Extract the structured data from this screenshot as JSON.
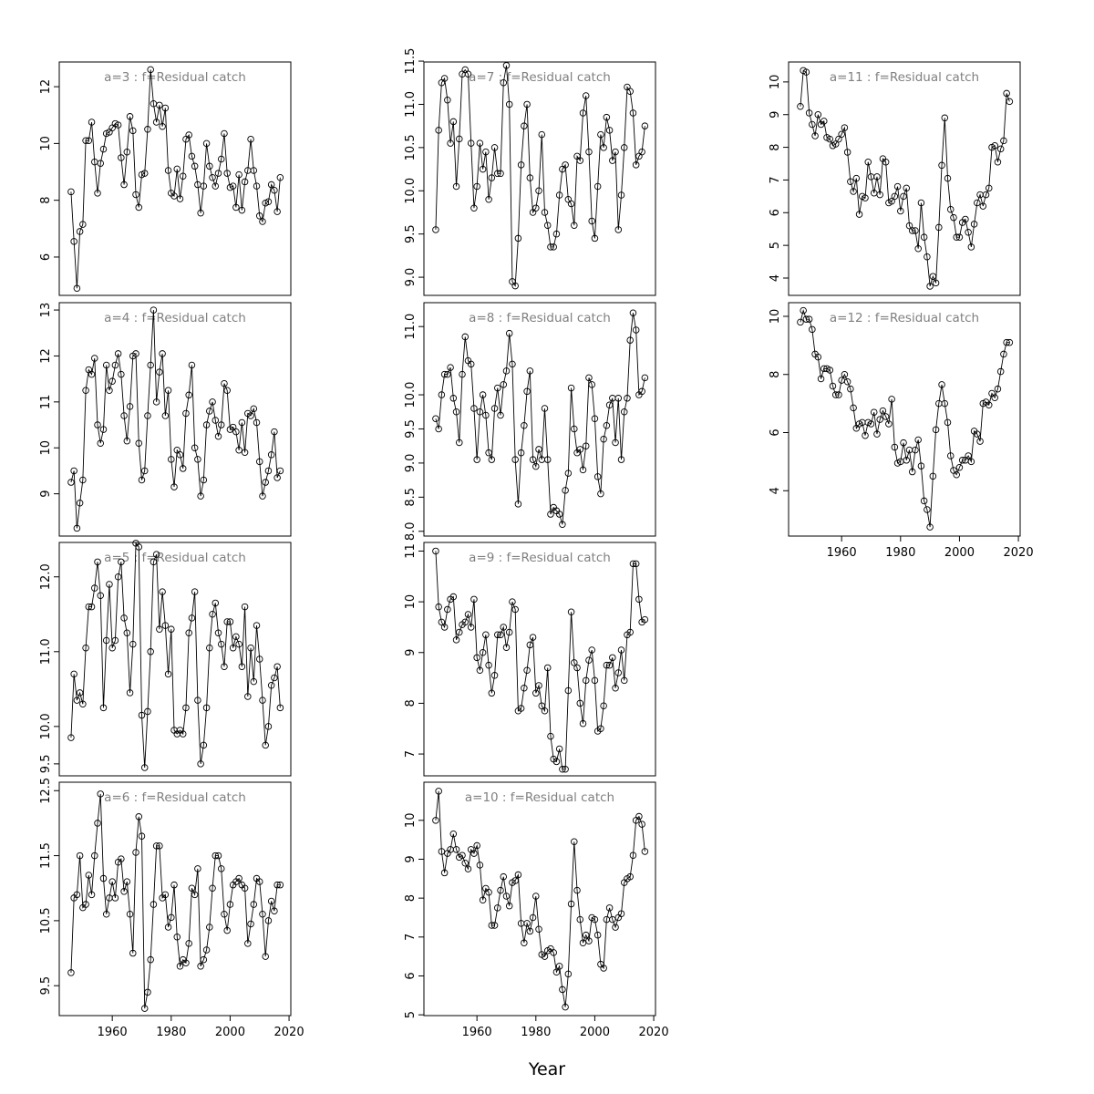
{
  "chart_data": {
    "type": "line",
    "xlabel": "Year",
    "x_start": 1946,
    "xlim": [
      1942,
      2020.6
    ],
    "xticks": [
      1960,
      1980,
      2000,
      2020
    ],
    "line_color": "#000000",
    "title_color": "#808080",
    "marker": "open-circle",
    "panels": [
      {
        "title": "a=3  :  f=Residual catch",
        "col": 0,
        "row": 0,
        "ylim": [
          4.65,
          12.87
        ],
        "yticks": [
          6,
          8,
          10,
          12
        ],
        "yticklabels": [
          "6",
          "8",
          "10",
          "12"
        ],
        "values": [
          8.3,
          6.55,
          4.9,
          6.9,
          7.15,
          10.1,
          10.1,
          10.75,
          9.35,
          8.25,
          9.3,
          9.8,
          10.35,
          10.4,
          10.55,
          10.7,
          10.65,
          9.5,
          8.55,
          9.7,
          10.95,
          10.45,
          8.2,
          7.75,
          8.9,
          8.95,
          10.5,
          12.6,
          11.4,
          10.75,
          11.35,
          10.6,
          11.25,
          9.05,
          8.25,
          8.15,
          9.1,
          8.05,
          8.85,
          10.15,
          10.3,
          9.55,
          9.2,
          8.55,
          7.55,
          8.5,
          10.0,
          9.2,
          8.8,
          8.5,
          8.95,
          9.45,
          10.35,
          8.95,
          8.45,
          8.5,
          7.75,
          8.9,
          7.65,
          8.65,
          9.05,
          10.15,
          9.05,
          8.5,
          7.45,
          7.25,
          7.9,
          7.95,
          8.55,
          8.35,
          7.6,
          8.8
        ]
      },
      {
        "title": "a=4  :  f=Residual catch",
        "col": 0,
        "row": 1,
        "ylim": [
          8.08,
          13.16
        ],
        "yticks": [
          9,
          10,
          11,
          12,
          13
        ],
        "yticklabels": [
          "9",
          "10",
          "11",
          "12",
          "13"
        ],
        "values": [
          9.25,
          9.5,
          8.25,
          8.8,
          9.3,
          11.25,
          11.7,
          11.6,
          11.95,
          10.5,
          10.1,
          10.4,
          11.8,
          11.25,
          11.45,
          11.8,
          12.05,
          11.6,
          10.7,
          10.15,
          10.9,
          12.0,
          12.05,
          10.1,
          9.3,
          9.5,
          10.7,
          11.8,
          13.0,
          11.0,
          11.65,
          12.05,
          10.7,
          11.25,
          9.75,
          9.15,
          9.95,
          9.85,
          9.55,
          10.75,
          11.15,
          11.8,
          10.0,
          9.75,
          8.95,
          9.3,
          10.5,
          10.8,
          11.0,
          10.6,
          10.25,
          10.5,
          11.4,
          11.25,
          10.4,
          10.45,
          10.35,
          9.95,
          10.55,
          9.9,
          10.75,
          10.7,
          10.85,
          10.55,
          9.7,
          8.95,
          9.25,
          9.5,
          9.85,
          10.35,
          9.35,
          9.5
        ]
      },
      {
        "title": "a=5  :  f=Residual catch",
        "col": 0,
        "row": 2,
        "ylim": [
          9.34,
          12.46
        ],
        "yticks": [
          9.5,
          10.0,
          11.0,
          12.0
        ],
        "yticklabels": [
          "9.5",
          "10.0",
          "11.0",
          "12.0"
        ],
        "values": [
          9.85,
          10.7,
          10.35,
          10.45,
          10.3,
          11.05,
          11.6,
          11.6,
          11.85,
          12.2,
          11.75,
          10.25,
          11.15,
          11.9,
          11.05,
          11.15,
          12.0,
          12.2,
          11.45,
          11.25,
          10.45,
          11.1,
          12.45,
          12.4,
          10.15,
          9.45,
          10.2,
          11.0,
          12.2,
          12.3,
          11.3,
          11.8,
          11.35,
          10.7,
          11.3,
          9.95,
          9.9,
          9.95,
          9.9,
          10.25,
          11.25,
          11.45,
          11.8,
          10.35,
          9.5,
          9.75,
          10.25,
          11.05,
          11.5,
          11.65,
          11.25,
          11.1,
          10.8,
          11.4,
          11.4,
          11.05,
          11.2,
          11.1,
          10.8,
          11.6,
          10.4,
          11.05,
          10.6,
          11.35,
          10.9,
          10.35,
          9.75,
          10.0,
          10.55,
          10.65,
          10.8,
          10.25
        ]
      },
      {
        "title": "a=6  :  f=Residual catch",
        "col": 0,
        "row": 3,
        "ylim": [
          9.04,
          12.63
        ],
        "yticks": [
          9.5,
          10.5,
          11.5,
          12.5
        ],
        "yticklabels": [
          "9.5",
          "10.5",
          "11.5",
          "12.5"
        ],
        "values": [
          9.7,
          10.85,
          10.9,
          11.5,
          10.7,
          10.75,
          11.2,
          10.9,
          11.5,
          12.0,
          12.45,
          11.15,
          10.6,
          10.85,
          11.1,
          10.85,
          11.4,
          11.45,
          10.95,
          11.1,
          10.6,
          10.0,
          11.55,
          12.1,
          11.8,
          9.15,
          9.4,
          9.9,
          10.75,
          11.65,
          11.65,
          10.85,
          10.9,
          10.4,
          10.55,
          11.05,
          10.25,
          9.8,
          9.9,
          9.85,
          10.15,
          11.0,
          10.9,
          11.3,
          9.8,
          9.9,
          10.05,
          10.4,
          11.0,
          11.5,
          11.5,
          11.3,
          10.6,
          10.35,
          10.75,
          11.05,
          11.1,
          11.15,
          11.05,
          11.0,
          10.15,
          10.45,
          10.75,
          11.15,
          11.1,
          10.6,
          9.95,
          10.5,
          10.8,
          10.65,
          11.05,
          11.05
        ]
      },
      {
        "title": "a=7  :  f=Residual catch",
        "col": 1,
        "row": 0,
        "ylim": [
          8.79,
          11.49
        ],
        "yticks": [
          9.0,
          9.5,
          10.0,
          10.5,
          11.0,
          11.5
        ],
        "yticklabels": [
          "9.0",
          "9.5",
          "10.0",
          "10.5",
          "11.0",
          "11.5"
        ],
        "values": [
          9.55,
          10.7,
          11.25,
          11.3,
          11.05,
          10.55,
          10.8,
          10.05,
          10.6,
          11.35,
          11.4,
          11.35,
          10.55,
          9.8,
          10.05,
          10.55,
          10.25,
          10.45,
          9.9,
          10.15,
          10.5,
          10.2,
          10.2,
          11.25,
          11.45,
          11.0,
          8.95,
          8.9,
          9.45,
          10.3,
          10.75,
          11.0,
          10.15,
          9.75,
          9.8,
          10.0,
          10.65,
          9.75,
          9.6,
          9.35,
          9.35,
          9.5,
          9.95,
          10.25,
          10.3,
          9.9,
          9.85,
          9.6,
          10.4,
          10.35,
          10.9,
          11.1,
          10.45,
          9.65,
          9.45,
          10.05,
          10.65,
          10.5,
          10.85,
          10.7,
          10.35,
          10.45,
          9.55,
          9.95,
          10.5,
          11.2,
          11.15,
          10.9,
          10.3,
          10.4,
          10.45,
          10.75
        ]
      },
      {
        "title": "a=8  :  f=Residual catch",
        "col": 1,
        "row": 1,
        "ylim": [
          7.93,
          11.35
        ],
        "yticks": [
          8.0,
          8.5,
          9.0,
          9.5,
          10.0,
          11.0
        ],
        "yticklabels": [
          "8.0",
          "8.5",
          "9.0",
          "9.5",
          "10.0",
          "11.0"
        ],
        "values": [
          9.65,
          9.5,
          10.0,
          10.3,
          10.3,
          10.4,
          9.95,
          9.75,
          9.3,
          10.3,
          10.85,
          10.5,
          10.45,
          9.8,
          9.05,
          9.75,
          10.0,
          9.7,
          9.15,
          9.05,
          9.8,
          10.1,
          9.7,
          10.15,
          10.35,
          10.9,
          10.45,
          9.05,
          8.4,
          9.15,
          9.55,
          10.05,
          10.35,
          9.05,
          8.95,
          9.2,
          9.05,
          9.8,
          9.05,
          8.25,
          8.35,
          8.3,
          8.25,
          8.1,
          8.6,
          8.85,
          10.1,
          9.5,
          9.15,
          9.2,
          8.9,
          9.25,
          10.25,
          10.15,
          9.65,
          8.8,
          8.55,
          9.35,
          9.55,
          9.85,
          9.95,
          9.3,
          9.95,
          9.05,
          9.75,
          9.95,
          10.8,
          11.2,
          10.95,
          10.0,
          10.05,
          10.25
        ]
      },
      {
        "title": "a=9  :  f=Residual catch",
        "col": 1,
        "row": 2,
        "ylim": [
          6.57,
          11.17
        ],
        "yticks": [
          7,
          8,
          9,
          10,
          11
        ],
        "yticklabels": [
          "7",
          "8",
          "9",
          "10",
          "11"
        ],
        "values": [
          11.0,
          9.9,
          9.6,
          9.5,
          9.85,
          10.05,
          10.1,
          9.25,
          9.4,
          9.55,
          9.6,
          9.75,
          9.5,
          10.05,
          8.9,
          8.65,
          9.0,
          9.35,
          8.75,
          8.2,
          8.55,
          9.35,
          9.35,
          9.5,
          9.1,
          9.4,
          10.0,
          9.85,
          7.85,
          7.9,
          8.3,
          8.65,
          9.15,
          9.3,
          8.2,
          8.35,
          7.95,
          7.85,
          8.7,
          7.35,
          6.9,
          6.85,
          7.1,
          6.7,
          6.7,
          8.25,
          9.8,
          8.8,
          8.7,
          8.0,
          7.6,
          8.45,
          8.85,
          9.05,
          8.45,
          7.45,
          7.5,
          7.95,
          8.75,
          8.75,
          8.9,
          8.3,
          8.6,
          9.05,
          8.45,
          9.35,
          9.4,
          10.75,
          10.75,
          10.05,
          9.6,
          9.65
        ]
      },
      {
        "title": "a=10  :  f=Residual catch",
        "col": 1,
        "row": 3,
        "ylim": [
          4.98,
          10.98
        ],
        "yticks": [
          5,
          6,
          7,
          8,
          9,
          10
        ],
        "yticklabels": [
          "5",
          "6",
          "7",
          "8",
          "9",
          "10"
        ],
        "values": [
          10.0,
          10.75,
          9.2,
          8.65,
          9.15,
          9.25,
          9.65,
          9.25,
          9.05,
          9.1,
          8.9,
          8.75,
          9.25,
          9.15,
          9.35,
          8.85,
          7.95,
          8.25,
          8.15,
          7.3,
          7.3,
          7.75,
          8.2,
          8.55,
          8.05,
          7.8,
          8.4,
          8.45,
          8.6,
          7.35,
          6.85,
          7.35,
          7.15,
          7.5,
          8.05,
          7.2,
          6.55,
          6.5,
          6.65,
          6.7,
          6.6,
          6.1,
          6.25,
          5.65,
          5.2,
          6.05,
          7.85,
          9.45,
          8.2,
          7.45,
          6.85,
          7.05,
          6.9,
          7.5,
          7.45,
          7.05,
          6.3,
          6.2,
          7.45,
          7.75,
          7.45,
          7.25,
          7.5,
          7.6,
          8.4,
          8.5,
          8.55,
          9.1,
          10.0,
          10.1,
          9.9,
          9.2
        ]
      },
      {
        "title": "a=11  :  f=Residual catch",
        "col": 2,
        "row": 0,
        "ylim": [
          3.47,
          10.61
        ],
        "yticks": [
          4,
          5,
          6,
          7,
          8,
          9,
          10
        ],
        "yticklabels": [
          "4",
          "5",
          "6",
          "7",
          "8",
          "9",
          "10"
        ],
        "values": [
          9.25,
          10.35,
          10.3,
          9.05,
          8.7,
          8.35,
          9.0,
          8.7,
          8.8,
          8.3,
          8.25,
          8.05,
          8.1,
          8.25,
          8.4,
          8.6,
          7.85,
          6.95,
          6.65,
          7.05,
          5.95,
          6.5,
          6.45,
          7.55,
          7.1,
          6.6,
          7.1,
          6.55,
          7.65,
          7.55,
          6.3,
          6.35,
          6.5,
          6.8,
          6.05,
          6.5,
          6.75,
          5.6,
          5.45,
          5.45,
          4.9,
          6.3,
          5.25,
          4.65,
          3.75,
          4.05,
          3.85,
          5.55,
          7.45,
          8.9,
          7.05,
          6.1,
          5.85,
          5.25,
          5.25,
          5.7,
          5.8,
          5.4,
          4.95,
          5.65,
          6.3,
          6.55,
          6.2,
          6.55,
          6.75,
          8.0,
          8.05,
          7.55,
          7.95,
          8.2,
          9.65,
          9.4
        ]
      },
      {
        "title": "a=12  :  f=Residual catch",
        "col": 2,
        "row": 1,
        "ylim": [
          2.44,
          10.47
        ],
        "yticks": [
          4,
          6,
          8,
          10
        ],
        "yticklabels": [
          "4",
          "6",
          "8",
          "10"
        ],
        "values": [
          9.8,
          10.2,
          9.9,
          9.9,
          9.55,
          8.7,
          8.6,
          7.85,
          8.2,
          8.2,
          8.15,
          7.6,
          7.3,
          7.3,
          7.8,
          8.0,
          7.75,
          7.5,
          6.85,
          6.15,
          6.3,
          6.35,
          5.9,
          6.35,
          6.3,
          6.7,
          5.95,
          6.45,
          6.75,
          6.55,
          6.3,
          7.15,
          5.5,
          4.95,
          5.0,
          5.65,
          5.05,
          5.4,
          4.65,
          5.4,
          5.75,
          4.85,
          3.65,
          3.35,
          2.75,
          4.5,
          6.1,
          7.0,
          7.65,
          7.0,
          6.35,
          5.2,
          4.7,
          4.55,
          4.8,
          5.05,
          5.05,
          5.2,
          5.0,
          6.05,
          5.95,
          5.7,
          7.0,
          7.05,
          6.95,
          7.35,
          7.2,
          7.5,
          8.1,
          8.7,
          9.1,
          9.1
        ]
      }
    ]
  }
}
